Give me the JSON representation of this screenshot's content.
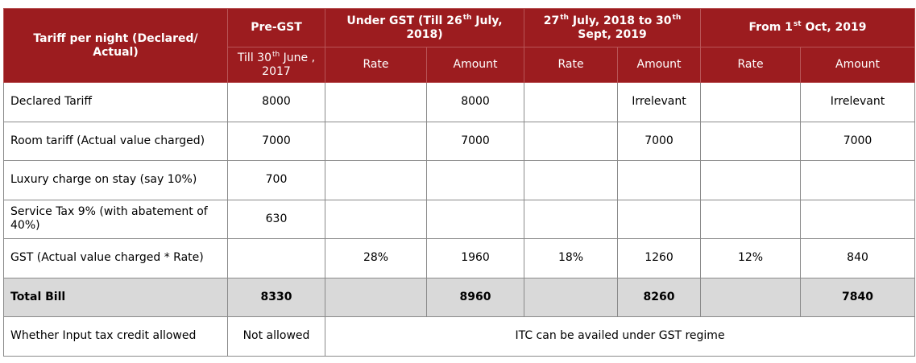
{
  "header": {
    "corner": "Tariff per night (Declared/ Actual)",
    "pre_gst": {
      "title": "Pre-GST",
      "sub": "Till 30th June , 2017"
    },
    "periods": [
      {
        "title": "Under GST (Till 26th July, 2018)"
      },
      {
        "title": "27th July, 2018 to 30th Sept, 2019"
      },
      {
        "title": "From 1st Oct, 2019"
      }
    ],
    "rate_label": "Rate",
    "amount_label": "Amount"
  },
  "rows": [
    {
      "label": "Declared Tariff",
      "values": [
        "8000",
        "",
        "8000",
        "",
        "Irrelevant",
        "",
        "Irrelevant"
      ]
    },
    {
      "label": "Room tariff (Actual value charged)",
      "values": [
        "7000",
        "",
        "7000",
        "",
        "7000",
        "",
        "7000"
      ]
    },
    {
      "label": "Luxury charge on stay (say 10%)",
      "values": [
        "700",
        "",
        "",
        "",
        "",
        "",
        ""
      ]
    },
    {
      "label": "Service Tax 9% (with abatement of 40%)",
      "values": [
        "630",
        "",
        "",
        "",
        "",
        "",
        ""
      ]
    },
    {
      "label": "GST (Actual value charged * Rate)",
      "values": [
        "",
        "28%",
        "1960",
        "18%",
        "1260",
        "12%",
        "840"
      ]
    },
    {
      "label": "Total Bill",
      "values": [
        "8330",
        "",
        "8960",
        "",
        "8260",
        "",
        "7840"
      ]
    }
  ],
  "itc_row": {
    "label": "Whether Input tax credit allowed",
    "pre_gst": "Not allowed",
    "gst": "ITC can be availed under GST regime"
  },
  "colors": {
    "header_bg": "#9c1c1f",
    "total_bg": "#d9d9d9"
  }
}
